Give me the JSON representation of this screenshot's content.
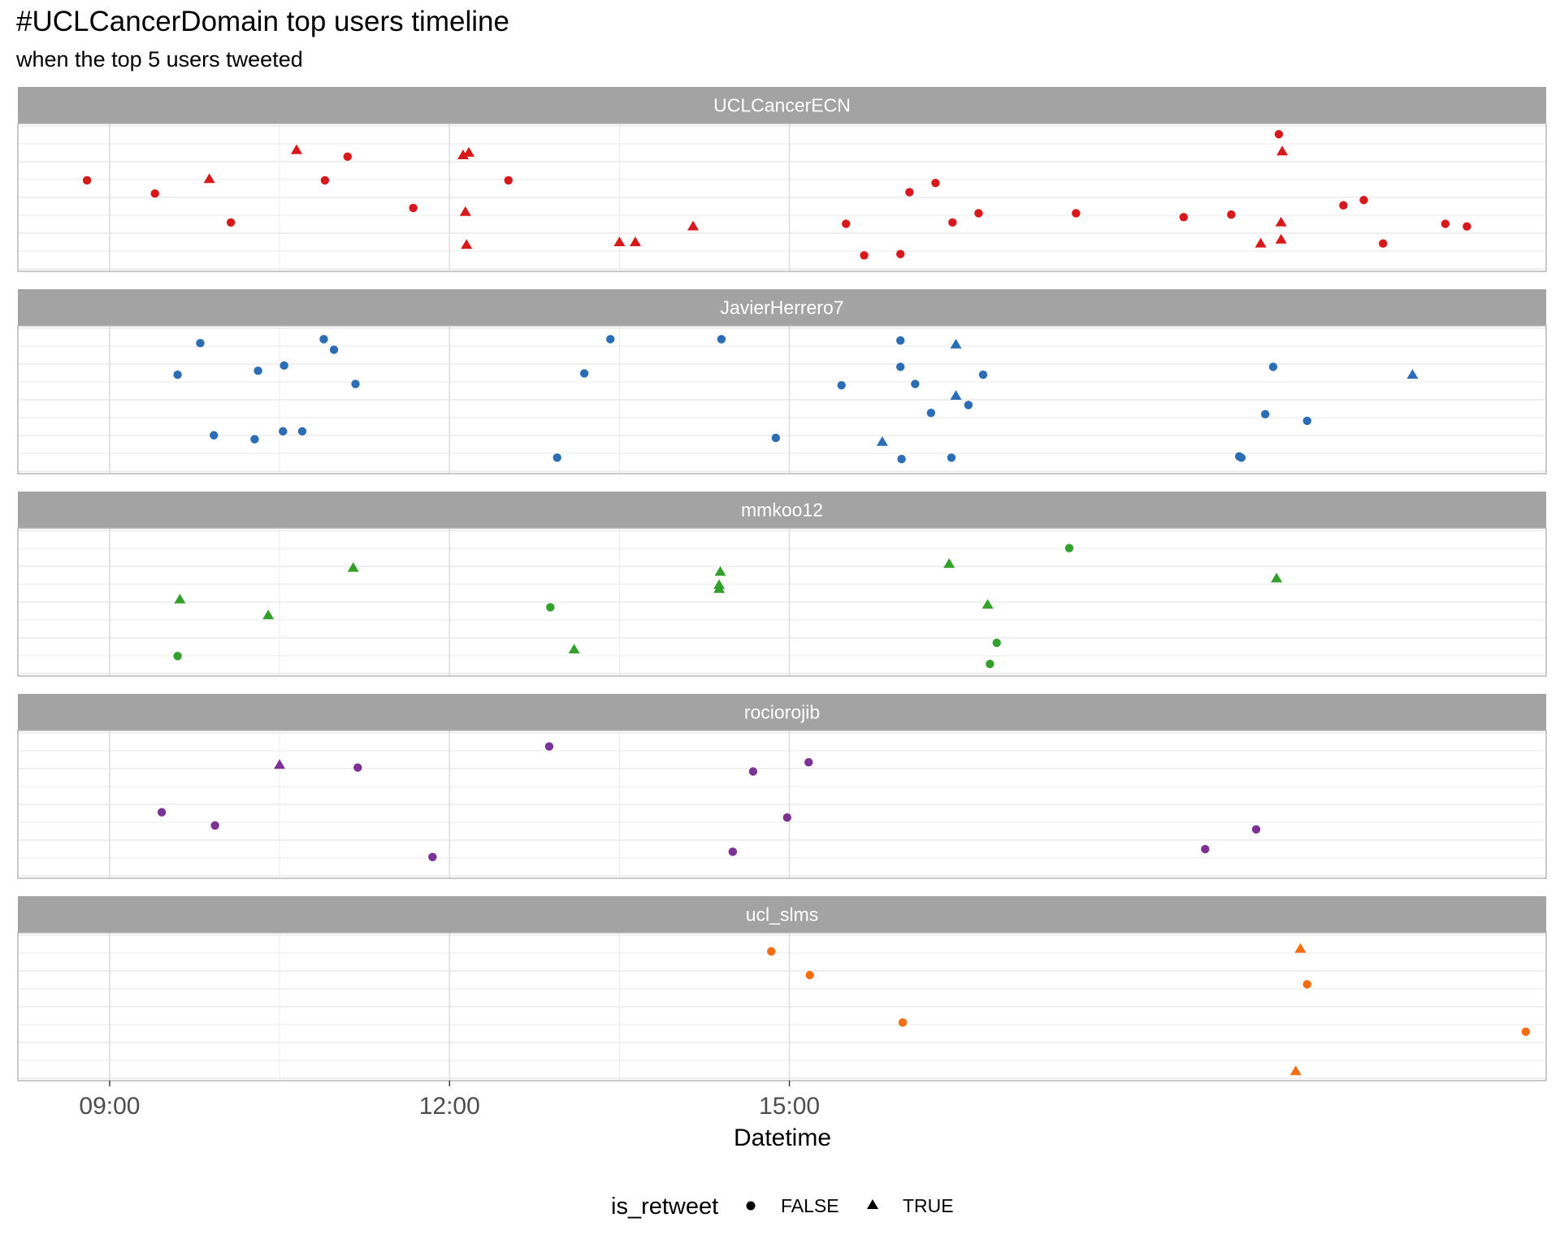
{
  "chart_data": {
    "type": "scatter",
    "title": "#UCLCancerDomain top users timeline",
    "subtitle": "when the top 5 users tweeted",
    "xlabel": "Datetime",
    "ylabel": "",
    "x_ticks": [
      "09:00",
      "12:00",
      "15:00"
    ],
    "x_tick_hours": [
      9,
      12,
      15
    ],
    "xlim_hours": [
      8.19,
      21.68
    ],
    "legend": {
      "title": "is_retweet",
      "position": "bottom",
      "entries": [
        {
          "label": "FALSE",
          "shape": "circle"
        },
        {
          "label": "TRUE",
          "shape": "triangle"
        }
      ]
    },
    "grid": true,
    "y_jitter_range": [
      0,
      1
    ],
    "facets": [
      {
        "name": "UCLCancerECN",
        "color": "#d7191c",
        "points": [
          {
            "t": 8.8,
            "y": 0.63,
            "r": false
          },
          {
            "t": 9.4,
            "y": 0.53,
            "r": false
          },
          {
            "t": 10.07,
            "y": 0.31,
            "r": false
          },
          {
            "t": 9.88,
            "y": 0.64,
            "r": true
          },
          {
            "t": 10.65,
            "y": 0.86,
            "r": true
          },
          {
            "t": 10.9,
            "y": 0.63,
            "r": false
          },
          {
            "t": 11.1,
            "y": 0.81,
            "r": false
          },
          {
            "t": 11.68,
            "y": 0.42,
            "r": false
          },
          {
            "t": 12.12,
            "y": 0.82,
            "r": true
          },
          {
            "t": 12.17,
            "y": 0.84,
            "r": true
          },
          {
            "t": 12.14,
            "y": 0.39,
            "r": true
          },
          {
            "t": 12.15,
            "y": 0.14,
            "r": true
          },
          {
            "t": 12.52,
            "y": 0.63,
            "r": false
          },
          {
            "t": 13.5,
            "y": 0.16,
            "r": true
          },
          {
            "t": 13.64,
            "y": 0.16,
            "r": true
          },
          {
            "t": 14.15,
            "y": 0.28,
            "r": true
          },
          {
            "t": 15.5,
            "y": 0.3,
            "r": false
          },
          {
            "t": 15.66,
            "y": 0.06,
            "r": false
          },
          {
            "t": 15.98,
            "y": 0.07,
            "r": false
          },
          {
            "t": 16.06,
            "y": 0.54,
            "r": false
          },
          {
            "t": 16.29,
            "y": 0.61,
            "r": false
          },
          {
            "t": 16.44,
            "y": 0.31,
            "r": false
          },
          {
            "t": 16.67,
            "y": 0.38,
            "r": false
          },
          {
            "t": 17.53,
            "y": 0.38,
            "r": false
          },
          {
            "t": 18.48,
            "y": 0.35,
            "r": false
          },
          {
            "t": 18.9,
            "y": 0.37,
            "r": false
          },
          {
            "t": 19.32,
            "y": 0.98,
            "r": false
          },
          {
            "t": 19.35,
            "y": 0.85,
            "r": true
          },
          {
            "t": 19.34,
            "y": 0.31,
            "r": true
          },
          {
            "t": 19.16,
            "y": 0.15,
            "r": true
          },
          {
            "t": 19.34,
            "y": 0.18,
            "r": true
          },
          {
            "t": 19.89,
            "y": 0.44,
            "r": false
          },
          {
            "t": 20.07,
            "y": 0.48,
            "r": false
          },
          {
            "t": 20.24,
            "y": 0.15,
            "r": false
          },
          {
            "t": 20.79,
            "y": 0.3,
            "r": false
          },
          {
            "t": 20.98,
            "y": 0.28,
            "r": false
          }
        ]
      },
      {
        "name": "JavierHerrero7",
        "color": "#2c6eb5",
        "points": [
          {
            "t": 9.8,
            "y": 0.93,
            "r": false
          },
          {
            "t": 9.6,
            "y": 0.69,
            "r": false
          },
          {
            "t": 9.92,
            "y": 0.23,
            "r": false
          },
          {
            "t": 10.31,
            "y": 0.72,
            "r": false
          },
          {
            "t": 10.28,
            "y": 0.2,
            "r": false
          },
          {
            "t": 10.54,
            "y": 0.76,
            "r": false
          },
          {
            "t": 10.53,
            "y": 0.26,
            "r": false
          },
          {
            "t": 10.7,
            "y": 0.26,
            "r": false
          },
          {
            "t": 10.89,
            "y": 0.96,
            "r": false
          },
          {
            "t": 10.98,
            "y": 0.88,
            "r": false
          },
          {
            "t": 11.17,
            "y": 0.62,
            "r": false
          },
          {
            "t": 12.95,
            "y": 0.06,
            "r": false
          },
          {
            "t": 13.19,
            "y": 0.7,
            "r": false
          },
          {
            "t": 13.42,
            "y": 0.96,
            "r": false
          },
          {
            "t": 14.4,
            "y": 0.96,
            "r": false
          },
          {
            "t": 14.88,
            "y": 0.21,
            "r": false
          },
          {
            "t": 15.46,
            "y": 0.61,
            "r": false
          },
          {
            "t": 15.98,
            "y": 0.95,
            "r": false
          },
          {
            "t": 15.98,
            "y": 0.75,
            "r": false
          },
          {
            "t": 16.11,
            "y": 0.62,
            "r": false
          },
          {
            "t": 16.25,
            "y": 0.4,
            "r": false
          },
          {
            "t": 15.82,
            "y": 0.18,
            "r": true
          },
          {
            "t": 15.99,
            "y": 0.05,
            "r": false
          },
          {
            "t": 16.43,
            "y": 0.06,
            "r": false
          },
          {
            "t": 16.47,
            "y": 0.92,
            "r": true
          },
          {
            "t": 16.47,
            "y": 0.53,
            "r": true
          },
          {
            "t": 16.58,
            "y": 0.46,
            "r": false
          },
          {
            "t": 16.71,
            "y": 0.69,
            "r": false
          },
          {
            "t": 18.97,
            "y": 0.07,
            "r": false
          },
          {
            "t": 18.99,
            "y": 0.06,
            "r": false
          },
          {
            "t": 19.2,
            "y": 0.39,
            "r": false
          },
          {
            "t": 19.27,
            "y": 0.75,
            "r": false
          },
          {
            "t": 19.57,
            "y": 0.34,
            "r": false
          },
          {
            "t": 20.5,
            "y": 0.69,
            "r": true
          }
        ]
      },
      {
        "name": "mmkoo12",
        "color": "#33a02c",
        "points": [
          {
            "t": 9.62,
            "y": 0.52,
            "r": true
          },
          {
            "t": 9.6,
            "y": 0.09,
            "r": false
          },
          {
            "t": 10.4,
            "y": 0.4,
            "r": true
          },
          {
            "t": 11.15,
            "y": 0.76,
            "r": true
          },
          {
            "t": 12.89,
            "y": 0.46,
            "r": false
          },
          {
            "t": 13.1,
            "y": 0.14,
            "r": true
          },
          {
            "t": 14.39,
            "y": 0.73,
            "r": true
          },
          {
            "t": 14.38,
            "y": 0.63,
            "r": true
          },
          {
            "t": 14.38,
            "y": 0.6,
            "r": true
          },
          {
            "t": 16.41,
            "y": 0.79,
            "r": true
          },
          {
            "t": 16.75,
            "y": 0.48,
            "r": true
          },
          {
            "t": 16.83,
            "y": 0.19,
            "r": false
          },
          {
            "t": 16.77,
            "y": 0.03,
            "r": false
          },
          {
            "t": 17.47,
            "y": 0.91,
            "r": false
          },
          {
            "t": 19.3,
            "y": 0.68,
            "r": true
          }
        ]
      },
      {
        "name": "rociorojib",
        "color": "#7b3294",
        "points": [
          {
            "t": 9.46,
            "y": 0.44,
            "r": false
          },
          {
            "t": 9.93,
            "y": 0.34,
            "r": false
          },
          {
            "t": 10.5,
            "y": 0.8,
            "r": true
          },
          {
            "t": 11.19,
            "y": 0.78,
            "r": false
          },
          {
            "t": 11.85,
            "y": 0.1,
            "r": false
          },
          {
            "t": 12.88,
            "y": 0.94,
            "r": false
          },
          {
            "t": 14.5,
            "y": 0.14,
            "r": false
          },
          {
            "t": 14.68,
            "y": 0.75,
            "r": false
          },
          {
            "t": 14.98,
            "y": 0.4,
            "r": false
          },
          {
            "t": 15.17,
            "y": 0.82,
            "r": false
          },
          {
            "t": 18.67,
            "y": 0.16,
            "r": false
          },
          {
            "t": 19.12,
            "y": 0.31,
            "r": false
          }
        ]
      },
      {
        "name": "ucl_slms",
        "color": "#f46d10",
        "points": [
          {
            "t": 14.84,
            "y": 0.92,
            "r": false
          },
          {
            "t": 15.18,
            "y": 0.74,
            "r": false
          },
          {
            "t": 16.0,
            "y": 0.38,
            "r": false
          },
          {
            "t": 19.51,
            "y": 0.94,
            "r": true
          },
          {
            "t": 19.57,
            "y": 0.67,
            "r": false
          },
          {
            "t": 19.47,
            "y": 0.01,
            "r": true
          },
          {
            "t": 21.5,
            "y": 0.31,
            "r": false
          }
        ]
      }
    ]
  }
}
